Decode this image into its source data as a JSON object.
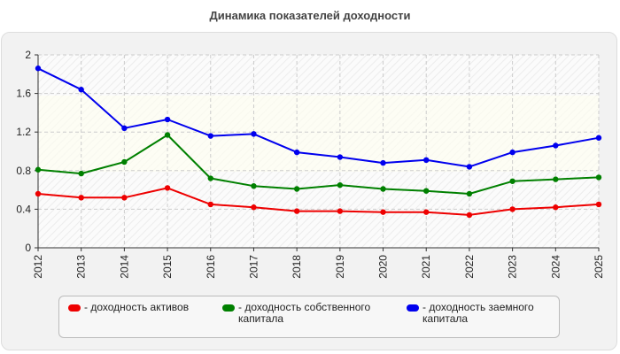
{
  "chart_data": {
    "type": "line",
    "title": "Динамика показателей доходности",
    "categories": [
      "2012",
      "2013",
      "2014",
      "2015",
      "2016",
      "2017",
      "2018",
      "2019",
      "2020",
      "2021",
      "2022",
      "2023",
      "2024",
      "2025"
    ],
    "ylim": [
      0,
      2
    ],
    "yticks": [
      "0",
      "0.4",
      "0.8",
      "1.2",
      "1.6",
      "2"
    ],
    "grid": true,
    "legend_position": "bottom",
    "series": [
      {
        "name": "- доходность активов",
        "color": "#ee0000",
        "values": [
          0.56,
          0.52,
          0.52,
          0.62,
          0.45,
          0.42,
          0.38,
          0.38,
          0.37,
          0.37,
          0.34,
          0.4,
          0.42,
          0.45
        ]
      },
      {
        "name": "- доходность собственного капитала",
        "color": "#008000",
        "values": [
          0.81,
          0.77,
          0.89,
          1.17,
          0.72,
          0.64,
          0.61,
          0.65,
          0.61,
          0.59,
          0.56,
          0.69,
          0.71,
          0.73
        ]
      },
      {
        "name": "- доходность заемного капитала",
        "color": "#0000ee",
        "values": [
          1.86,
          1.64,
          1.24,
          1.33,
          1.16,
          1.18,
          0.99,
          0.94,
          0.88,
          0.91,
          0.84,
          0.99,
          1.06,
          1.14
        ]
      }
    ]
  }
}
